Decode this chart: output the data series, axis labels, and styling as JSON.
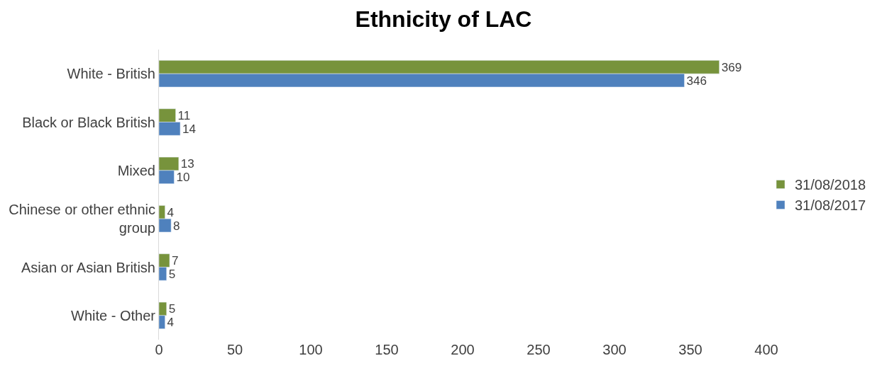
{
  "chart_data": {
    "type": "bar",
    "orientation": "horizontal",
    "title": "Ethnicity of LAC",
    "categories": [
      "White - British",
      "Black or Black British",
      "Mixed",
      "Chinese or other ethnic group",
      "Asian or Asian British",
      "White - Other"
    ],
    "series": [
      {
        "name": "31/08/2018",
        "color": "#77933c",
        "values": [
          369,
          11,
          13,
          4,
          7,
          5
        ]
      },
      {
        "name": "31/08/2017",
        "color": "#4f81bd",
        "values": [
          346,
          14,
          10,
          8,
          5,
          4
        ]
      }
    ],
    "xlim": [
      0,
      400
    ],
    "xticks": [
      0,
      50,
      100,
      150,
      200,
      250,
      300,
      350,
      400
    ],
    "data_labels": true,
    "legend": "right"
  }
}
